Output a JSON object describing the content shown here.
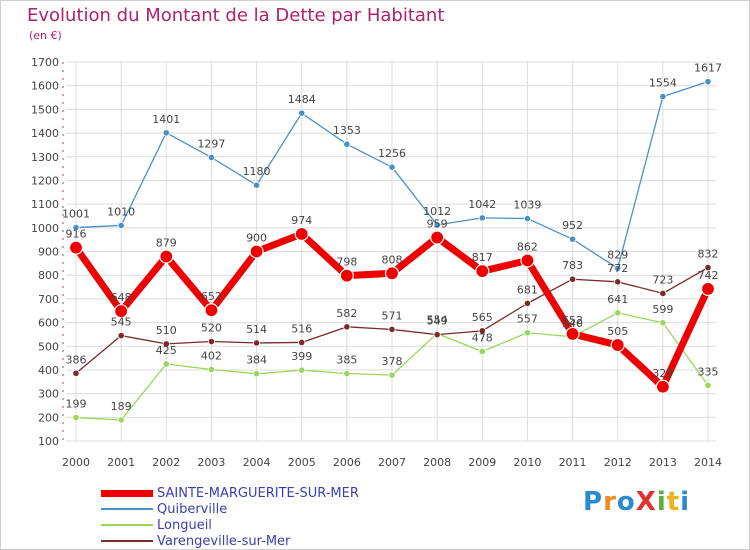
{
  "header": {
    "title": "Evolution du Montant de la Dette par Habitant",
    "subtitle": "(en €)"
  },
  "logo": {
    "text": "ProXiti"
  },
  "chart_data": {
    "type": "line",
    "title": "Evolution du Montant de la Dette par Habitant",
    "subtitle": "(en €)",
    "xlabel": "",
    "ylabel": "",
    "ylim": [
      100,
      1700
    ],
    "yticks": [
      100,
      200,
      300,
      400,
      500,
      600,
      700,
      800,
      900,
      1000,
      1100,
      1200,
      1300,
      1400,
      1500,
      1600,
      1700
    ],
    "grid": true,
    "legend_position": "bottom-left",
    "categories": [
      "2000",
      "2001",
      "2002",
      "2003",
      "2004",
      "2005",
      "2006",
      "2007",
      "2008",
      "2009",
      "2010",
      "2011",
      "2012",
      "2013",
      "2014"
    ],
    "series": [
      {
        "name": "SAINTE-MARGUERITE-SUR-MER",
        "color": "#ee0000",
        "values": [
          916,
          648,
          879,
          652,
          900,
          974,
          798,
          808,
          959,
          817,
          862,
          552,
          505,
          329,
          742
        ]
      },
      {
        "name": "Quiberville",
        "color": "#4a90c8",
        "values": [
          1001,
          1010,
          1401,
          1297,
          1180,
          1484,
          1353,
          1256,
          1012,
          1042,
          1039,
          952,
          829,
          1554,
          1617
        ]
      },
      {
        "name": "Longueil",
        "color": "#9bd65a",
        "values": [
          199,
          189,
          425,
          402,
          384,
          399,
          385,
          378,
          554,
          478,
          557,
          540,
          641,
          599,
          335
        ]
      },
      {
        "name": "Varengeville-sur-Mer",
        "color": "#7a2a2a",
        "values": [
          386,
          545,
          510,
          520,
          514,
          516,
          582,
          571,
          549,
          565,
          681,
          783,
          772,
          723,
          832
        ]
      }
    ]
  }
}
